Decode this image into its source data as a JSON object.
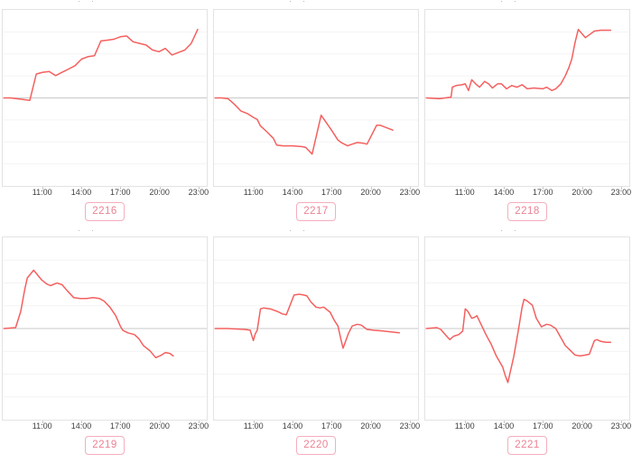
{
  "page": {
    "background": "#ffffff"
  },
  "colors": {
    "line": "#f4605f",
    "grid_line": "#f3f3f3",
    "zero_line": "#c9c9c9",
    "panel_border": "#e3e3e3",
    "axis_tick": "#c9c9c9",
    "axis_label": "#3e3e3e",
    "badge_border": "#f5aebc",
    "badge_text": "#ec8293",
    "clipped_title": "#9a9a9a"
  },
  "clipped_title_text": "· ·",
  "x_axis": {
    "ticks": [
      "11:00",
      "14:00",
      "17:00",
      "20:00",
      "23:00"
    ],
    "tick_hours": [
      11,
      14,
      17,
      20,
      23
    ],
    "range_hours": [
      7.9,
      23.7
    ],
    "grid": "horizontal-only"
  },
  "y_axis": {
    "baseline": "middle-zero-line",
    "range_rel": [
      -1,
      1
    ],
    "divisions": 8,
    "labels_shown": false
  },
  "chart_data": [
    {
      "type": "line",
      "label": "2216",
      "x_unit": "hour-of-day",
      "x": [
        8.0,
        8.5,
        9.0,
        9.5,
        10.0,
        10.5,
        11.0,
        11.5,
        12.0,
        12.5,
        13.0,
        13.5,
        14.0,
        14.5,
        15.0,
        15.5,
        16.0,
        16.5,
        17.0,
        17.5,
        18.0,
        18.5,
        19.0,
        19.5,
        20.0,
        20.5,
        21.0,
        21.5,
        22.0,
        22.5,
        23.0
      ],
      "values": [
        0,
        0,
        -0.01,
        -0.02,
        -0.03,
        0.29,
        0.31,
        0.32,
        0.27,
        0.31,
        0.35,
        0.39,
        0.47,
        0.5,
        0.51,
        0.69,
        0.7,
        0.71,
        0.74,
        0.75,
        0.68,
        0.66,
        0.64,
        0.58,
        0.56,
        0.6,
        0.52,
        0.55,
        0.58,
        0.66,
        0.83
      ]
    },
    {
      "type": "line",
      "label": "2217",
      "x_unit": "hour-of-day",
      "x": [
        8.0,
        8.5,
        9.0,
        9.5,
        10.0,
        10.5,
        11.0,
        11.25,
        11.5,
        12.0,
        12.5,
        12.75,
        13.25,
        14.0,
        14.75,
        15.0,
        15.5,
        16.2,
        17.0,
        17.5,
        17.75,
        18.25,
        18.6,
        19.0,
        19.5,
        19.75,
        20.5,
        20.75,
        21.25,
        21.75
      ],
      "values": [
        0,
        0,
        -0.01,
        -0.08,
        -0.16,
        -0.19,
        -0.24,
        -0.26,
        -0.34,
        -0.41,
        -0.49,
        -0.57,
        -0.58,
        -0.58,
        -0.59,
        -0.6,
        -0.68,
        -0.21,
        -0.39,
        -0.51,
        -0.54,
        -0.58,
        -0.56,
        -0.54,
        -0.55,
        -0.56,
        -0.33,
        -0.33,
        -0.36,
        -0.39
      ]
    },
    {
      "type": "line",
      "label": "2218",
      "x_unit": "hour-of-day",
      "x": [
        8.0,
        9.0,
        9.9,
        10.0,
        10.3,
        10.75,
        11.0,
        11.25,
        11.5,
        11.8,
        12.1,
        12.5,
        12.8,
        13.1,
        13.5,
        13.8,
        14.2,
        14.6,
        15.0,
        15.4,
        15.8,
        16.3,
        17.0,
        17.3,
        17.7,
        18.0,
        18.4,
        18.75,
        19.0,
        19.25,
        19.5,
        19.75,
        20.3,
        21.0,
        21.5,
        22.25
      ],
      "values": [
        0,
        -0.01,
        0.01,
        0.13,
        0.15,
        0.16,
        0.17,
        0.09,
        0.22,
        0.17,
        0.13,
        0.2,
        0.17,
        0.12,
        0.17,
        0.17,
        0.11,
        0.15,
        0.13,
        0.16,
        0.11,
        0.12,
        0.11,
        0.13,
        0.09,
        0.11,
        0.17,
        0.27,
        0.36,
        0.47,
        0.67,
        0.83,
        0.73,
        0.81,
        0.82,
        0.82
      ]
    },
    {
      "type": "line",
      "label": "2219",
      "x_unit": "hour-of-day",
      "x": [
        8.0,
        8.9,
        9.3,
        9.6,
        9.8,
        10.3,
        10.9,
        11.3,
        11.6,
        12.1,
        12.5,
        12.9,
        13.4,
        13.9,
        14.4,
        14.9,
        15.4,
        15.75,
        16.2,
        16.65,
        17.0,
        17.2,
        17.6,
        18.1,
        18.45,
        18.8,
        19.3,
        19.75,
        20.2,
        20.5,
        20.85,
        21.1
      ],
      "values": [
        0,
        0.01,
        0.2,
        0.45,
        0.59,
        0.68,
        0.57,
        0.52,
        0.5,
        0.53,
        0.51,
        0.44,
        0.36,
        0.35,
        0.35,
        0.36,
        0.35,
        0.32,
        0.25,
        0.15,
        0.03,
        -0.02,
        -0.05,
        -0.07,
        -0.12,
        -0.2,
        -0.26,
        -0.34,
        -0.31,
        -0.28,
        -0.29,
        -0.32
      ]
    },
    {
      "type": "line",
      "label": "2220",
      "x_unit": "hour-of-day",
      "x": [
        8.0,
        9.0,
        10.3,
        10.7,
        10.95,
        11.1,
        11.25,
        11.5,
        11.75,
        12.25,
        12.8,
        13.2,
        13.5,
        14.1,
        14.5,
        14.85,
        15.1,
        15.4,
        15.8,
        16.1,
        16.4,
        16.9,
        17.2,
        17.5,
        17.75,
        17.9,
        18.3,
        18.6,
        19.0,
        19.3,
        19.75,
        20.25,
        21.0,
        21.6,
        22.25
      ],
      "values": [
        0,
        0,
        -0.01,
        -0.02,
        -0.14,
        -0.06,
        -0.02,
        0.23,
        0.24,
        0.23,
        0.2,
        0.17,
        0.16,
        0.39,
        0.4,
        0.39,
        0.38,
        0.31,
        0.25,
        0.24,
        0.25,
        0.19,
        0.1,
        0.03,
        -0.14,
        -0.23,
        -0.06,
        0.03,
        0.05,
        0.04,
        -0.01,
        -0.02,
        -0.03,
        -0.04,
        -0.05
      ]
    },
    {
      "type": "line",
      "label": "2221",
      "x_unit": "hour-of-day",
      "x": [
        8.0,
        8.8,
        9.1,
        9.5,
        9.8,
        10.1,
        10.5,
        10.8,
        11.0,
        11.2,
        11.5,
        11.7,
        11.9,
        12.25,
        12.6,
        13.0,
        13.4,
        13.9,
        14.1,
        14.3,
        14.75,
        15.1,
        15.4,
        15.55,
        15.8,
        16.2,
        16.5,
        16.9,
        17.3,
        17.6,
        18.0,
        18.3,
        18.75,
        19.1,
        19.5,
        19.9,
        20.3,
        20.6,
        21.0,
        21.2,
        21.5,
        21.9,
        22.25
      ],
      "values": [
        0,
        0.01,
        -0.01,
        -0.08,
        -0.13,
        -0.09,
        -0.07,
        -0.03,
        0.23,
        0.2,
        0.12,
        0.13,
        0.15,
        0.04,
        -0.07,
        -0.18,
        -0.32,
        -0.45,
        -0.55,
        -0.63,
        -0.33,
        -0.03,
        0.25,
        0.34,
        0.32,
        0.27,
        0.12,
        0.02,
        0.05,
        0.04,
        0.0,
        -0.08,
        -0.2,
        -0.25,
        -0.31,
        -0.32,
        -0.31,
        -0.3,
        -0.14,
        -0.13,
        -0.15,
        -0.16,
        -0.16
      ]
    }
  ]
}
